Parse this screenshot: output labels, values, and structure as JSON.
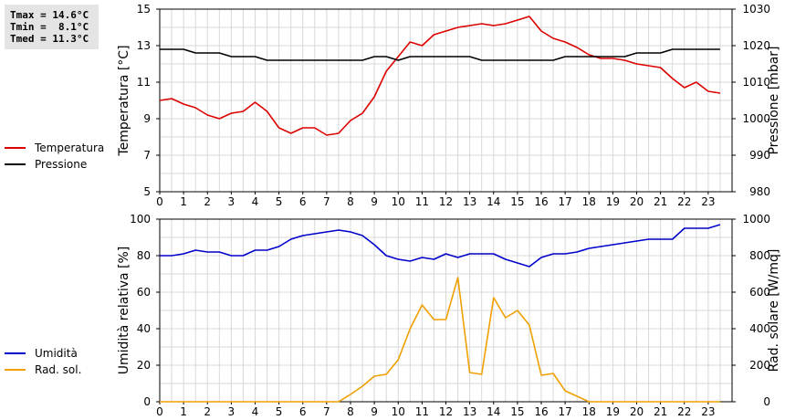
{
  "stats": {
    "tmax": "Tmax = 14.6°C",
    "tmin": "Tmin =  8.1°C",
    "tmed": "Tmed = 11.3°C"
  },
  "chart_data": [
    {
      "type": "line",
      "x_label_values": [
        "0",
        "1",
        "2",
        "3",
        "4",
        "5",
        "6",
        "7",
        "8",
        "9",
        "10",
        "11",
        "12",
        "13",
        "14",
        "15",
        "16",
        "17",
        "18",
        "19",
        "20",
        "21",
        "22",
        "23"
      ],
      "xlabel": "",
      "grid": true,
      "legend_position": "left",
      "y_left": {
        "label": "Temperatura [°C]",
        "lim": [
          5,
          15
        ],
        "ticks": [
          "5",
          "7",
          "9",
          "11",
          "13",
          "15"
        ]
      },
      "y_right": {
        "label": "Pressione [mbar]",
        "lim": [
          980,
          1030
        ],
        "ticks": [
          "980",
          "990",
          "1000",
          "1010",
          "1020",
          "1030"
        ]
      },
      "series": [
        {
          "name": "Temperatura",
          "axis": "left",
          "color": "#dd0000",
          "x": [
            0,
            0.5,
            1,
            1.5,
            2,
            2.5,
            3,
            3.5,
            4,
            4.5,
            5,
            5.5,
            6,
            6.5,
            7,
            7.5,
            8,
            8.5,
            9,
            9.5,
            10,
            10.5,
            11,
            11.5,
            12,
            12.5,
            13,
            13.5,
            14,
            14.5,
            15,
            15.5,
            16,
            16.5,
            17,
            17.5,
            18,
            18.5,
            19,
            19.5,
            20,
            20.5,
            21,
            21.5,
            22,
            22.5,
            23,
            23.5
          ],
          "values": [
            10.0,
            10.1,
            9.8,
            9.6,
            9.2,
            9.0,
            9.3,
            9.4,
            9.9,
            9.4,
            8.5,
            8.2,
            8.5,
            8.5,
            8.1,
            8.2,
            8.9,
            9.3,
            10.2,
            11.6,
            12.4,
            13.2,
            13.0,
            13.6,
            13.8,
            14.0,
            14.1,
            14.2,
            14.1,
            14.2,
            14.4,
            14.6,
            13.8,
            13.4,
            13.2,
            12.9,
            12.5,
            12.3,
            12.3,
            12.2,
            12.0,
            11.9,
            11.8,
            11.2,
            10.7,
            11.0,
            10.5,
            10.4
          ]
        },
        {
          "name": "Pressione",
          "axis": "right",
          "color": "#000000",
          "x": [
            0,
            0.5,
            1,
            1.5,
            2,
            2.5,
            3,
            3.5,
            4,
            4.5,
            5,
            5.5,
            6,
            6.5,
            7,
            7.5,
            8,
            8.5,
            9,
            9.5,
            10,
            10.5,
            11,
            11.5,
            12,
            12.5,
            13,
            13.5,
            14,
            14.5,
            15,
            15.5,
            16,
            16.5,
            17,
            17.5,
            18,
            18.5,
            19,
            19.5,
            20,
            20.5,
            21,
            21.5,
            22,
            22.5,
            23,
            23.5
          ],
          "values": [
            1019,
            1019,
            1019,
            1018,
            1018,
            1018,
            1017,
            1017,
            1017,
            1016,
            1016,
            1016,
            1016,
            1016,
            1016,
            1016,
            1016,
            1016,
            1017,
            1017,
            1016,
            1017,
            1017,
            1017,
            1017,
            1017,
            1017,
            1016,
            1016,
            1016,
            1016,
            1016,
            1016,
            1016,
            1017,
            1017,
            1017,
            1017,
            1017,
            1017,
            1018,
            1018,
            1018,
            1019,
            1019,
            1019,
            1019,
            1019
          ]
        }
      ]
    },
    {
      "type": "line",
      "x_label_values": [
        "0",
        "1",
        "2",
        "3",
        "4",
        "5",
        "6",
        "7",
        "8",
        "9",
        "10",
        "11",
        "12",
        "13",
        "14",
        "15",
        "16",
        "17",
        "18",
        "19",
        "20",
        "21",
        "22",
        "23"
      ],
      "xlabel": "",
      "grid": true,
      "legend_position": "left",
      "y_left": {
        "label": "Umidità relativa [%]",
        "lim": [
          0,
          100
        ],
        "ticks": [
          "0",
          "20",
          "40",
          "60",
          "80",
          "100"
        ]
      },
      "y_right": {
        "label": "Rad. solare [W/mq]",
        "lim": [
          0,
          1000
        ],
        "ticks": [
          "0",
          "200",
          "400",
          "600",
          "800",
          "1000"
        ]
      },
      "series": [
        {
          "name": "Umidità",
          "axis": "left",
          "color": "#0000cc",
          "x": [
            0,
            0.5,
            1,
            1.5,
            2,
            2.5,
            3,
            3.5,
            4,
            4.5,
            5,
            5.5,
            6,
            6.5,
            7,
            7.5,
            8,
            8.5,
            9,
            9.5,
            10,
            10.5,
            11,
            11.5,
            12,
            12.5,
            13,
            13.5,
            14,
            14.5,
            15,
            15.5,
            16,
            16.5,
            17,
            17.5,
            18,
            18.5,
            19,
            19.5,
            20,
            20.5,
            21,
            21.5,
            22,
            22.5,
            23,
            23.5
          ],
          "values": [
            80,
            80,
            81,
            83,
            82,
            82,
            80,
            80,
            83,
            83,
            85,
            89,
            91,
            92,
            93,
            94,
            93,
            91,
            86,
            80,
            78,
            77,
            79,
            78,
            81,
            79,
            81,
            81,
            81,
            78,
            76,
            74,
            79,
            81,
            81,
            82,
            84,
            85,
            86,
            87,
            88,
            89,
            89,
            89,
            95,
            95,
            95,
            97
          ]
        },
        {
          "name": "Rad. sol.",
          "axis": "right",
          "color": "#f0a000",
          "x": [
            0,
            0.5,
            1,
            1.5,
            2,
            2.5,
            3,
            3.5,
            4,
            4.5,
            5,
            5.5,
            6,
            6.5,
            7,
            7.5,
            8,
            8.5,
            9,
            9.5,
            10,
            10.5,
            11,
            11.5,
            12,
            12.5,
            13,
            13.5,
            14,
            14.5,
            15,
            15.5,
            16,
            16.5,
            17,
            17.5,
            18,
            18.5,
            19,
            19.5,
            20,
            20.5,
            21,
            21.5,
            22,
            22.5,
            23,
            23.5
          ],
          "values": [
            0,
            0,
            0,
            0,
            0,
            0,
            0,
            0,
            0,
            0,
            0,
            0,
            0,
            0,
            0,
            0,
            40,
            85,
            140,
            150,
            230,
            400,
            530,
            450,
            450,
            680,
            160,
            150,
            570,
            460,
            500,
            420,
            145,
            155,
            60,
            30,
            0,
            0,
            0,
            0,
            0,
            0,
            0,
            0,
            0,
            0,
            0,
            0
          ]
        }
      ]
    }
  ]
}
